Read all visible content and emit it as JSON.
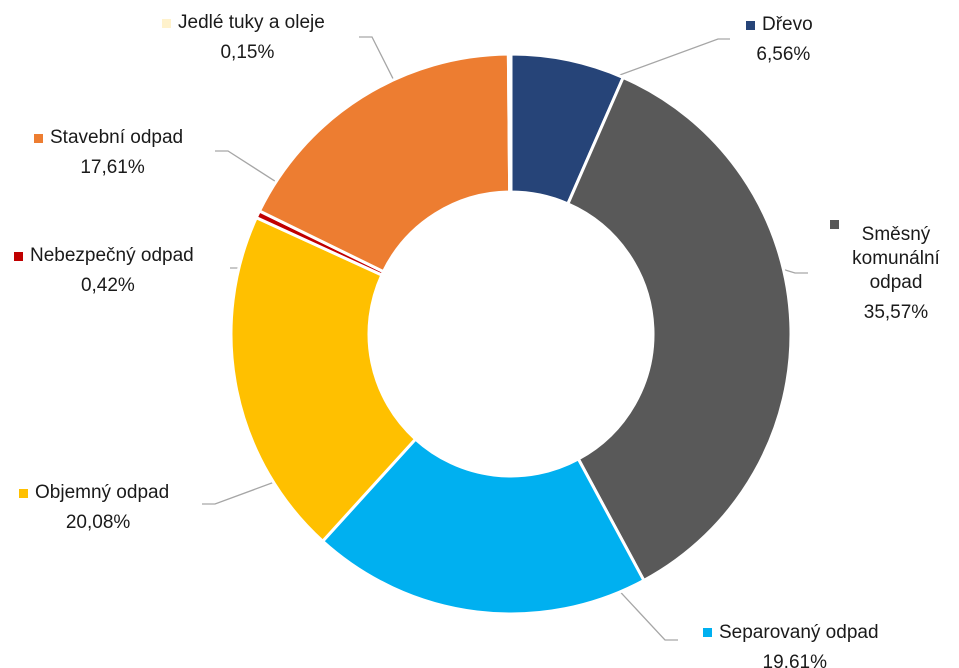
{
  "chart_data": {
    "type": "pie",
    "variant": "donut",
    "title": "",
    "legend": "none",
    "slices": [
      {
        "name": "Dřevo",
        "value": 6.56,
        "display": "6,56%",
        "color": "#264478"
      },
      {
        "name": "Směsný komunální odpad",
        "lines": [
          "Směsný",
          "komunální",
          "odpad"
        ],
        "value": 35.57,
        "display": "35,57%",
        "color": "#595959"
      },
      {
        "name": "Separovaný odpad",
        "value": 19.61,
        "display": "19,61%",
        "color": "#00b0f0"
      },
      {
        "name": "Objemný odpad",
        "value": 20.08,
        "display": "20,08%",
        "color": "#ffc000"
      },
      {
        "name": "Nebezpečný odpad",
        "value": 0.42,
        "display": "0,42%",
        "color": "#c00000"
      },
      {
        "name": "Stavební odpad",
        "value": 17.61,
        "display": "17,61%",
        "color": "#ed7d31"
      },
      {
        "name": "Jedlé tuky a oleje",
        "value": 0.15,
        "display": "0,15%",
        "color": "#fff2cc"
      }
    ]
  }
}
